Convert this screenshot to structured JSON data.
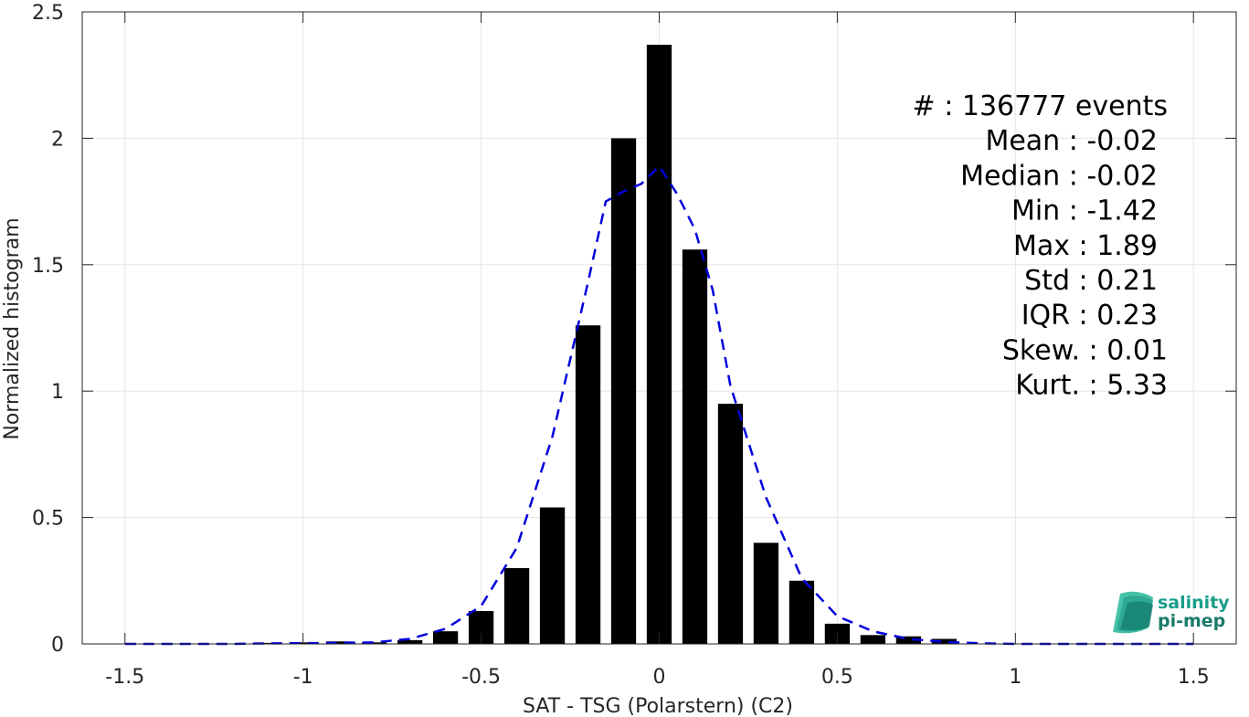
{
  "chart_data": {
    "type": "bar",
    "xlabel": "SAT - TSG (Polarstern) (C2)",
    "ylabel": "Normalized histogram",
    "xlim": [
      -1.62,
      1.62
    ],
    "ylim": [
      0,
      2.5
    ],
    "x_ticks": [
      -1.5,
      -1,
      -0.5,
      0,
      0.5,
      1,
      1.5
    ],
    "x_tick_labels": [
      "-1.5",
      "-1",
      "-0.5",
      "0",
      "0.5",
      "1",
      "1.5"
    ],
    "y_ticks": [
      0,
      0.5,
      1,
      1.5,
      2,
      2.5
    ],
    "y_tick_labels": [
      "0",
      "0.5",
      "1",
      "1.5",
      "2",
      "2.5"
    ],
    "grid": true,
    "bar_width": 0.07,
    "bars": {
      "x": [
        -1.1,
        -1.0,
        -0.9,
        -0.8,
        -0.7,
        -0.6,
        -0.5,
        -0.4,
        -0.3,
        -0.2,
        -0.1,
        0.0,
        0.1,
        0.2,
        0.3,
        0.4,
        0.5,
        0.6,
        0.7,
        0.8
      ],
      "values": [
        0.004,
        0.006,
        0.01,
        0.006,
        0.015,
        0.05,
        0.13,
        0.3,
        0.54,
        1.26,
        2.0,
        2.37,
        1.56,
        0.95,
        0.4,
        0.25,
        0.08,
        0.035,
        0.03,
        0.02
      ],
      "color": "#000000"
    },
    "fit_curve": {
      "style": "dashed",
      "color": "#0000dd",
      "x": [
        -1.5,
        -1.4,
        -1.3,
        -1.2,
        -1.1,
        -1.0,
        -0.9,
        -0.8,
        -0.7,
        -0.6,
        -0.5,
        -0.4,
        -0.3,
        -0.2,
        -0.15,
        -0.1,
        -0.05,
        0.0,
        0.05,
        0.1,
        0.15,
        0.2,
        0.3,
        0.4,
        0.5,
        0.6,
        0.7,
        0.8,
        0.9,
        1.0,
        1.1,
        1.2,
        1.3,
        1.4,
        1.5
      ],
      "y": [
        0.0,
        0.0,
        0.0,
        0.0,
        0.002,
        0.003,
        0.004,
        0.006,
        0.02,
        0.06,
        0.15,
        0.38,
        0.82,
        1.43,
        1.75,
        1.79,
        1.82,
        1.89,
        1.78,
        1.64,
        1.4,
        1.02,
        0.58,
        0.26,
        0.11,
        0.05,
        0.02,
        0.008,
        0.003,
        0.0,
        0.0,
        0.0,
        0.0,
        0.0,
        0.0
      ]
    }
  },
  "stats": [
    {
      "label": "#  : 136777 events"
    },
    {
      "label": "Mean : -0.02"
    },
    {
      "label": "Median : -0.02"
    },
    {
      "label": "Min : -1.42"
    },
    {
      "label": "Max : 1.89"
    },
    {
      "label": "Std : 0.21"
    },
    {
      "label": "IQR : 0.23"
    },
    {
      "label": "Skew. : 0.01"
    },
    {
      "label": "Kurt. : 5.33"
    }
  ],
  "logo": {
    "line1": "salinity",
    "line2": "pi-mep",
    "color1": "#1a9e8a",
    "color2": "#1a7a6a"
  }
}
